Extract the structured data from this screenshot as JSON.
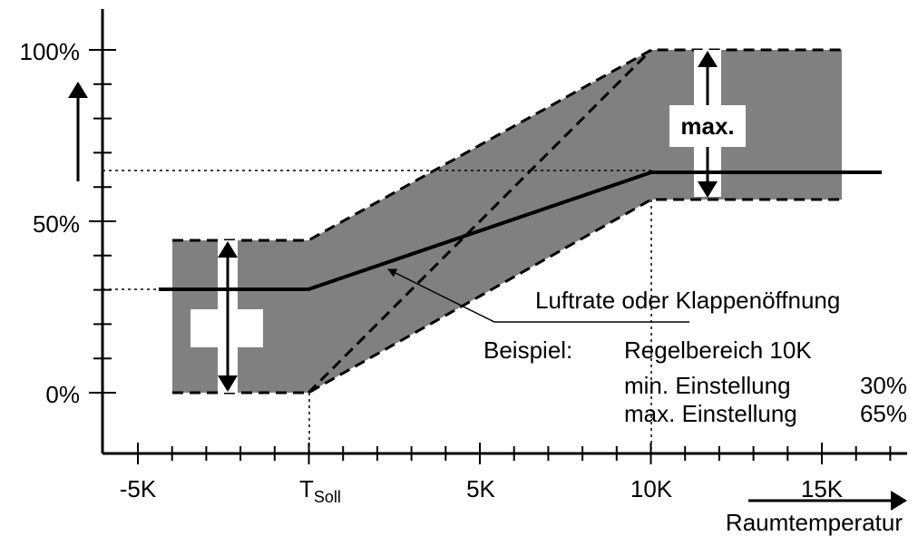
{
  "y_axis": {
    "labels": [
      "100%",
      "50%",
      "0%"
    ]
  },
  "x_axis": {
    "labels": [
      "-5K",
      {
        "text": "T",
        "subscript": "Soll"
      },
      "5K",
      "10K",
      "15K"
    ],
    "title": "Raumtemperatur"
  },
  "box_label": "max.",
  "curve_label": "Luftrate oder Klappenöffnung",
  "example": {
    "heading": "Beispiel:",
    "lines": [
      {
        "label": "Regelbereich 10K"
      },
      {
        "label": "min. Einstellung",
        "value": "30%"
      },
      {
        "label": "max. Einstellung",
        "value": "65%"
      }
    ]
  }
}
